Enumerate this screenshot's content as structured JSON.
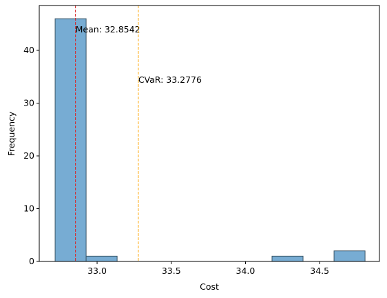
{
  "chart_data": {
    "type": "histogram",
    "xlabel": "Cost",
    "ylabel": "Frequency",
    "bins": [
      32.717,
      32.926,
      33.135,
      33.343,
      33.552,
      33.761,
      33.97,
      34.179,
      34.388,
      34.597,
      34.806
    ],
    "values": [
      46,
      1,
      0,
      0,
      0,
      0,
      0,
      1,
      0,
      2
    ],
    "color": "#77acd3",
    "edgecolor": "#3a5566",
    "xlim": [
      32.61,
      34.903
    ],
    "ylim": [
      0,
      48.5
    ],
    "xticks": [
      {
        "value": 33,
        "label": "33.0"
      },
      {
        "value": 33.5,
        "label": "33.5"
      },
      {
        "value": 34,
        "label": "34.0"
      },
      {
        "value": 34.5,
        "label": "34.5"
      }
    ],
    "yticks": [
      0,
      10,
      20,
      30,
      40
    ],
    "vlines": [
      {
        "value": 32.8542,
        "color": "#d62728",
        "label": "Mean: 32.8542"
      },
      {
        "value": 33.2776,
        "color": "#ffa500",
        "label": "CVaR: 33.2776"
      }
    ]
  }
}
